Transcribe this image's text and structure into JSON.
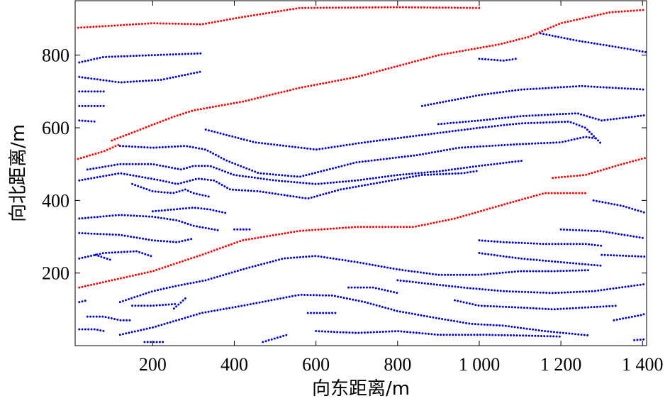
{
  "chart_data": {
    "type": "scatter",
    "title": "",
    "xlabel": "向东距离/m",
    "ylabel": "向北距离/m",
    "xlim": [
      10,
      1410
    ],
    "ylim": [
      0,
      950
    ],
    "xticks": [
      200,
      400,
      600,
      800,
      1000,
      1200,
      1400
    ],
    "xtick_labels": [
      "200",
      "400",
      "600",
      "800",
      "1 000",
      "1 200",
      "1 400"
    ],
    "yticks": [
      200,
      400,
      600,
      800
    ],
    "ytick_labels": [
      "200",
      "400",
      "600",
      "800"
    ],
    "grid": false,
    "legend": "none",
    "colors": {
      "red": "#ff0000",
      "blue": "#0000cc"
    },
    "series": [
      {
        "color": "red",
        "traces": [
          [
            [
              10,
              875
            ],
            [
              200,
              888
            ],
            [
              320,
              885
            ],
            [
              420,
              905
            ],
            [
              560,
              930
            ],
            [
              800,
              932
            ],
            [
              1000,
              930
            ]
          ],
          [
            [
              100,
              565
            ],
            [
              250,
              630
            ],
            [
              300,
              648
            ],
            [
              420,
              672
            ],
            [
              560,
              710
            ],
            [
              700,
              740
            ],
            [
              900,
              800
            ],
            [
              1050,
              830
            ],
            [
              1120,
              850
            ],
            [
              1200,
              888
            ],
            [
              1320,
              918
            ],
            [
              1410,
              925
            ]
          ],
          [
            [
              10,
              512
            ],
            [
              80,
              535
            ],
            [
              120,
              555
            ]
          ],
          [
            [
              20,
              160
            ],
            [
              200,
              205
            ],
            [
              320,
              250
            ],
            [
              420,
              290
            ],
            [
              560,
              316
            ],
            [
              700,
              327
            ],
            [
              840,
              327
            ],
            [
              940,
              350
            ],
            [
              1080,
              395
            ],
            [
              1160,
              420
            ],
            [
              1260,
              420
            ]
          ],
          [
            [
              1180,
              462
            ],
            [
              1260,
              470
            ],
            [
              1350,
              500
            ],
            [
              1410,
              518
            ]
          ]
        ]
      },
      {
        "color": "blue",
        "traces": [
          [
            [
              20,
              780
            ],
            [
              80,
              795
            ],
            [
              200,
              800
            ],
            [
              320,
              805
            ]
          ],
          [
            [
              20,
              740
            ],
            [
              120,
              725
            ],
            [
              220,
              732
            ],
            [
              320,
              755
            ]
          ],
          [
            [
              20,
              700
            ],
            [
              80,
              700
            ]
          ],
          [
            [
              20,
              660
            ],
            [
              80,
              660
            ]
          ],
          [
            [
              20,
              620
            ],
            [
              60,
              617
            ]
          ],
          [
            [
              330,
              595
            ],
            [
              450,
              560
            ],
            [
              600,
              540
            ],
            [
              720,
              560
            ],
            [
              860,
              580
            ],
            [
              1000,
              600
            ],
            [
              1100,
              612
            ],
            [
              1220,
              617
            ],
            [
              1260,
              600
            ],
            [
              1300,
              555
            ]
          ],
          [
            [
              860,
              660
            ],
            [
              1000,
              690
            ],
            [
              1100,
              705
            ],
            [
              1250,
              715
            ],
            [
              1410,
              705
            ]
          ],
          [
            [
              1000,
              790
            ],
            [
              1060,
              785
            ],
            [
              1090,
              790
            ]
          ],
          [
            [
              1150,
              860
            ],
            [
              1240,
              840
            ],
            [
              1350,
              820
            ],
            [
              1410,
              808
            ]
          ],
          [
            [
              900,
              610
            ],
            [
              1000,
              620
            ],
            [
              1100,
              632
            ],
            [
              1240,
              640
            ],
            [
              1300,
              620
            ],
            [
              1410,
              635
            ]
          ],
          [
            [
              120,
              550
            ],
            [
              200,
              545
            ],
            [
              280,
              550
            ],
            [
              330,
              540
            ],
            [
              380,
              510
            ],
            [
              460,
              475
            ],
            [
              560,
              465
            ],
            [
              700,
              505
            ],
            [
              850,
              525
            ],
            [
              950,
              545
            ],
            [
              1100,
              555
            ],
            [
              1200,
              560
            ],
            [
              1260,
              575
            ],
            [
              1290,
              570
            ]
          ],
          [
            [
              40,
              485
            ],
            [
              120,
              500
            ],
            [
              200,
              500
            ],
            [
              270,
              485
            ],
            [
              300,
              495
            ],
            [
              340,
              495
            ],
            [
              400,
              470
            ],
            [
              500,
              455
            ],
            [
              600,
              445
            ],
            [
              700,
              455
            ],
            [
              800,
              470
            ],
            [
              900,
              480
            ],
            [
              1000,
              495
            ],
            [
              1110,
              510
            ]
          ],
          [
            [
              20,
              455
            ],
            [
              120,
              475
            ],
            [
              220,
              455
            ],
            [
              260,
              445
            ],
            [
              310,
              460
            ],
            [
              350,
              455
            ],
            [
              390,
              430
            ],
            [
              460,
              425
            ],
            [
              580,
              405
            ],
            [
              660,
              430
            ],
            [
              760,
              450
            ],
            [
              860,
              470
            ],
            [
              960,
              475
            ],
            [
              1000,
              482
            ]
          ],
          [
            [
              150,
              445
            ],
            [
              200,
              425
            ],
            [
              250,
              420
            ],
            [
              280,
              430
            ],
            [
              300,
              420
            ],
            [
              340,
              410
            ]
          ],
          [
            [
              200,
              370
            ],
            [
              300,
              380
            ],
            [
              340,
              375
            ],
            [
              380,
              365
            ]
          ],
          [
            [
              20,
              350
            ],
            [
              120,
              360
            ],
            [
              200,
              355
            ],
            [
              260,
              345
            ],
            [
              300,
              330
            ],
            [
              360,
              318
            ]
          ],
          [
            [
              20,
              310
            ],
            [
              120,
              305
            ],
            [
              200,
              290
            ],
            [
              260,
              285
            ],
            [
              300,
              295
            ]
          ],
          [
            [
              20,
              240
            ],
            [
              80,
              255
            ],
            [
              160,
              260
            ],
            [
              200,
              245
            ]
          ],
          [
            [
              60,
              250
            ],
            [
              100,
              235
            ]
          ],
          [
            [
              120,
              120
            ],
            [
              200,
              150
            ],
            [
              260,
              165
            ],
            [
              330,
              180
            ],
            [
              420,
              210
            ],
            [
              520,
              240
            ],
            [
              600,
              247
            ],
            [
              700,
              230
            ],
            [
              800,
              210
            ],
            [
              900,
              195
            ],
            [
              1000,
              195
            ],
            [
              1100,
              205
            ],
            [
              1180,
              205
            ],
            [
              1270,
              208
            ]
          ],
          [
            [
              20,
              120
            ],
            [
              40,
              125
            ]
          ],
          [
            [
              150,
              110
            ],
            [
              200,
              110
            ],
            [
              260,
              115
            ]
          ],
          [
            [
              280,
              130
            ],
            [
              250,
              100
            ]
          ],
          [
            [
              40,
              80
            ],
            [
              80,
              80
            ],
            [
              120,
              70
            ],
            [
              150,
              70
            ]
          ],
          [
            [
              20,
              45
            ],
            [
              60,
              45
            ],
            [
              80,
              40
            ]
          ],
          [
            [
              120,
              30
            ],
            [
              200,
              50
            ],
            [
              260,
              70
            ],
            [
              320,
              90
            ],
            [
              420,
              110
            ],
            [
              560,
              140
            ],
            [
              640,
              138
            ],
            [
              720,
              120
            ],
            [
              800,
              95
            ],
            [
              900,
              75
            ],
            [
              980,
              60
            ],
            [
              1060,
              55
            ],
            [
              1160,
              40
            ],
            [
              1270,
              28
            ]
          ],
          [
            [
              180,
              10
            ],
            [
              230,
              10
            ]
          ],
          [
            [
              470,
              10
            ],
            [
              530,
              30
            ]
          ],
          [
            [
              580,
              90
            ],
            [
              650,
              90
            ]
          ],
          [
            [
              600,
              40
            ],
            [
              700,
              35
            ],
            [
              800,
              40
            ],
            [
              900,
              30
            ],
            [
              1000,
              30
            ],
            [
              1100,
              28
            ],
            [
              1200,
              25
            ]
          ],
          [
            [
              680,
              160
            ],
            [
              740,
              160
            ],
            [
              780,
              150
            ],
            [
              800,
              145
            ]
          ],
          [
            [
              800,
              180
            ],
            [
              880,
              170
            ],
            [
              960,
              160
            ],
            [
              1060,
              150
            ],
            [
              1180,
              145
            ],
            [
              1280,
              150
            ],
            [
              1410,
              170
            ]
          ],
          [
            [
              940,
              125
            ],
            [
              1000,
              110
            ],
            [
              1100,
              105
            ],
            [
              1180,
              100
            ],
            [
              1260,
              105
            ],
            [
              1340,
              110
            ]
          ],
          [
            [
              1000,
              290
            ],
            [
              1060,
              285
            ],
            [
              1160,
              280
            ],
            [
              1260,
              280
            ],
            [
              1300,
              275
            ]
          ],
          [
            [
              1200,
              320
            ],
            [
              1300,
              315
            ],
            [
              1410,
              295
            ]
          ],
          [
            [
              1000,
              255
            ],
            [
              1100,
              240
            ],
            [
              1200,
              230
            ],
            [
              1300,
              220
            ]
          ],
          [
            [
              1300,
              250
            ],
            [
              1410,
              245
            ]
          ],
          [
            [
              1280,
              400
            ],
            [
              1350,
              385
            ],
            [
              1410,
              365
            ]
          ],
          [
            [
              1330,
              70
            ],
            [
              1400,
              85
            ],
            [
              1410,
              90
            ]
          ],
          [
            [
              1380,
              15
            ],
            [
              1410,
              18
            ]
          ],
          [
            [
              400,
              320
            ],
            [
              440,
              320
            ]
          ]
        ]
      }
    ]
  }
}
